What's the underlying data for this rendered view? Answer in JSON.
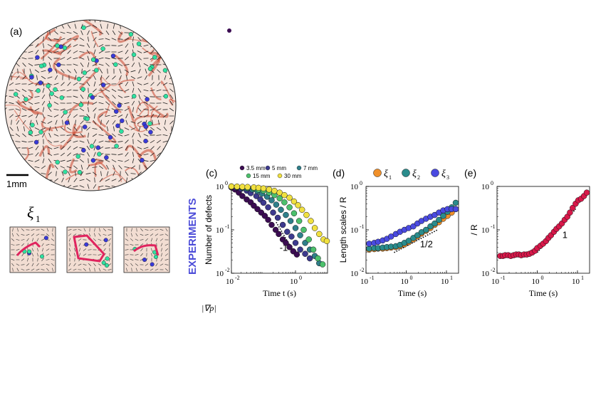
{
  "panel_a": {
    "label": "(a)",
    "scale_bar": "1mm",
    "inset_symbol": "ξ",
    "inset_subscript": "1",
    "colors": {
      "plus_defect": "#2ee0a0",
      "minus_defect": "#3a3ad8",
      "loop": "#e0245e",
      "background": "#c8442c"
    }
  },
  "vertical_label": "EXPERIMENTS",
  "bottom_label": "|∇p|",
  "chart_data": [
    {
      "panel": "(c)",
      "type": "scatter",
      "xlabel": "Time t (s)",
      "ylabel": "Number of defects",
      "xscale": "log",
      "yscale": "log",
      "xlim": [
        0.01,
        10
      ],
      "ylim": [
        0.01,
        1
      ],
      "xticks": [
        {
          "v": 0.01,
          "base": "10",
          "exp": "-2"
        },
        {
          "v": 1,
          "base": "10",
          "exp": "0"
        }
      ],
      "yticks": [
        {
          "v": 0.01,
          "base": "10",
          "exp": "-2"
        },
        {
          "v": 0.1,
          "base": "10",
          "exp": "-1"
        },
        {
          "v": 1,
          "base": "10",
          "exp": "0"
        }
      ],
      "annotations": [
        {
          "text": "-1",
          "x": 0.32,
          "y": 0.033,
          "line": [
            [
              0.25,
              0.15
            ],
            [
              0.9,
              0.03
            ]
          ]
        }
      ],
      "series": [
        {
          "name": "3.5 mm",
          "color": "#3b0c52",
          "x": [
            0.01,
            0.013,
            0.017,
            0.022,
            0.03,
            0.04,
            0.05,
            0.065,
            0.085,
            0.11,
            0.14,
            0.18,
            0.24,
            0.3,
            0.4,
            0.5,
            0.65,
            0.85,
            1.1
          ],
          "y": [
            0.95,
            0.85,
            0.72,
            0.6,
            0.5,
            0.43,
            0.36,
            0.3,
            0.25,
            0.21,
            0.17,
            0.13,
            0.1,
            0.08,
            0.06,
            0.05,
            0.04,
            0.032,
            0.027
          ]
        },
        {
          "name": "5 mm",
          "color": "#3d3a8e",
          "x": [
            0.01,
            0.014,
            0.02,
            0.03,
            0.04,
            0.06,
            0.08,
            0.1,
            0.14,
            0.2,
            0.28,
            0.4,
            0.55,
            0.75,
            1.0,
            1.4,
            2.0,
            2.8
          ],
          "y": [
            0.98,
            0.94,
            0.88,
            0.8,
            0.7,
            0.6,
            0.5,
            0.42,
            0.33,
            0.25,
            0.19,
            0.13,
            0.09,
            0.07,
            0.05,
            0.035,
            0.028,
            0.022
          ]
        },
        {
          "name": "7 mm",
          "color": "#2f7f8a",
          "x": [
            0.01,
            0.015,
            0.022,
            0.03,
            0.045,
            0.065,
            0.09,
            0.13,
            0.18,
            0.25,
            0.35,
            0.5,
            0.7,
            1.0,
            1.4,
            2.0,
            2.8,
            4.0,
            5.5
          ],
          "y": [
            0.99,
            0.97,
            0.93,
            0.9,
            0.85,
            0.78,
            0.68,
            0.58,
            0.48,
            0.38,
            0.29,
            0.22,
            0.16,
            0.11,
            0.075,
            0.05,
            0.035,
            0.025,
            0.017
          ]
        },
        {
          "name": "15 mm",
          "color": "#4cc06c",
          "x": [
            0.01,
            0.015,
            0.022,
            0.032,
            0.05,
            0.07,
            0.1,
            0.15,
            0.22,
            0.32,
            0.45,
            0.65,
            0.9,
            1.3,
            1.8,
            2.6,
            3.6,
            5.0,
            7.0
          ],
          "y": [
            1.0,
            0.98,
            0.96,
            0.93,
            0.9,
            0.85,
            0.8,
            0.72,
            0.63,
            0.53,
            0.43,
            0.33,
            0.24,
            0.16,
            0.1,
            0.06,
            0.035,
            0.022,
            0.016
          ]
        },
        {
          "name": "30 mm",
          "color": "#f0e040",
          "x": [
            0.01,
            0.015,
            0.022,
            0.032,
            0.05,
            0.07,
            0.1,
            0.15,
            0.22,
            0.32,
            0.45,
            0.65,
            0.9,
            1.2,
            1.6,
            2.2,
            3.0,
            4.0,
            5.5,
            7.5,
            9.5
          ],
          "y": [
            1.0,
            0.99,
            0.98,
            0.97,
            0.95,
            0.93,
            0.9,
            0.85,
            0.79,
            0.72,
            0.63,
            0.55,
            0.45,
            0.37,
            0.29,
            0.22,
            0.16,
            0.11,
            0.08,
            0.06,
            0.055
          ]
        }
      ]
    },
    {
      "panel": "(d)",
      "type": "scatter",
      "xlabel": "Time (s)",
      "ylabel": "Length scales / R",
      "xscale": "log",
      "yscale": "log",
      "xlim": [
        0.1,
        20
      ],
      "ylim": [
        0.01,
        1
      ],
      "xticks": [
        {
          "v": 0.1,
          "base": "10",
          "exp": "-1"
        },
        {
          "v": 1,
          "base": "10",
          "exp": "0"
        },
        {
          "v": 10,
          "base": "10",
          "exp": "1"
        }
      ],
      "yticks": [
        {
          "v": 0.01,
          "base": "10",
          "exp": "-2"
        },
        {
          "v": 0.1,
          "base": "10",
          "exp": "-1"
        },
        {
          "v": 1,
          "base": "10",
          "exp": "0"
        }
      ],
      "annotations": [
        {
          "text": "1/2",
          "x": 2.2,
          "y": 0.04,
          "line": [
            [
              0.5,
              0.03
            ],
            [
              6,
              0.1
            ]
          ]
        }
      ],
      "series": [
        {
          "name": "ξ",
          "sub": "1",
          "color": "#f0902a",
          "x": [
            0.12,
            0.16,
            0.2,
            0.26,
            0.33,
            0.42,
            0.55,
            0.7,
            0.9,
            1.15,
            1.5,
            1.9,
            2.4,
            3.1,
            4.0,
            5.1,
            6.5,
            8.3,
            10.6,
            13.5,
            17.0
          ],
          "y": [
            0.035,
            0.036,
            0.037,
            0.037,
            0.038,
            0.039,
            0.04,
            0.042,
            0.046,
            0.052,
            0.06,
            0.07,
            0.082,
            0.095,
            0.11,
            0.13,
            0.15,
            0.18,
            0.21,
            0.25,
            0.3
          ]
        },
        {
          "name": "ξ",
          "sub": "2",
          "color": "#2a8c8c",
          "x": [
            0.12,
            0.16,
            0.2,
            0.26,
            0.33,
            0.42,
            0.55,
            0.7,
            0.9,
            1.15,
            1.5,
            1.9,
            2.4,
            3.1,
            4.0,
            5.1,
            6.5,
            8.3,
            10.6,
            13.5,
            17.0
          ],
          "y": [
            0.037,
            0.038,
            0.038,
            0.039,
            0.04,
            0.041,
            0.042,
            0.045,
            0.05,
            0.056,
            0.065,
            0.075,
            0.088,
            0.1,
            0.12,
            0.14,
            0.17,
            0.21,
            0.26,
            0.33,
            0.42
          ]
        },
        {
          "name": "ξ",
          "sub": "3",
          "color": "#4a4ae0",
          "x": [
            0.12,
            0.16,
            0.2,
            0.26,
            0.33,
            0.42,
            0.55,
            0.7,
            0.9,
            1.15,
            1.5,
            1.9,
            2.4,
            3.1,
            4.0,
            5.1,
            6.5,
            8.3,
            10.6,
            13.5,
            17.0
          ],
          "y": [
            0.048,
            0.05,
            0.053,
            0.057,
            0.062,
            0.07,
            0.08,
            0.09,
            0.1,
            0.11,
            0.12,
            0.14,
            0.16,
            0.18,
            0.2,
            0.22,
            0.25,
            0.28,
            0.3,
            0.3,
            0.3
          ]
        }
      ]
    },
    {
      "panel": "(e)",
      "type": "scatter",
      "xlabel": "Time (s)",
      "ylabel": "/ R",
      "xscale": "log",
      "yscale": "log",
      "xlim": [
        0.1,
        20
      ],
      "ylim": [
        0.01,
        1
      ],
      "xticks": [
        {
          "v": 0.1,
          "base": "10",
          "exp": "-1"
        },
        {
          "v": 1,
          "base": "10",
          "exp": "0"
        },
        {
          "v": 10,
          "base": "10",
          "exp": "1"
        }
      ],
      "yticks": [
        {
          "v": 0.01,
          "base": "10",
          "exp": "-2"
        },
        {
          "v": 0.1,
          "base": "10",
          "exp": "-1"
        },
        {
          "v": 1,
          "base": "10",
          "exp": "0"
        }
      ],
      "annotations": [
        {
          "text": "1",
          "x": 4.2,
          "y": 0.065,
          "line": [
            [
              1.0,
              0.03
            ],
            [
              9,
              0.3
            ]
          ]
        }
      ],
      "series": [
        {
          "name": "",
          "color": "#d8184a",
          "x": [
            0.12,
            0.14,
            0.16,
            0.19,
            0.22,
            0.26,
            0.3,
            0.35,
            0.4,
            0.47,
            0.55,
            0.64,
            0.75,
            0.88,
            1.0,
            1.2,
            1.4,
            1.65,
            1.9,
            2.2,
            2.6,
            3.0,
            3.5,
            4.1,
            4.8,
            5.6,
            6.5,
            7.6,
            9.0,
            10.5,
            12.3,
            14.5,
            17.0
          ],
          "y": [
            0.025,
            0.025,
            0.026,
            0.026,
            0.025,
            0.026,
            0.027,
            0.027,
            0.026,
            0.027,
            0.027,
            0.028,
            0.03,
            0.033,
            0.038,
            0.043,
            0.048,
            0.055,
            0.065,
            0.075,
            0.09,
            0.105,
            0.12,
            0.14,
            0.17,
            0.2,
            0.25,
            0.32,
            0.4,
            0.48,
            0.52,
            0.6,
            0.72
          ]
        }
      ]
    }
  ]
}
